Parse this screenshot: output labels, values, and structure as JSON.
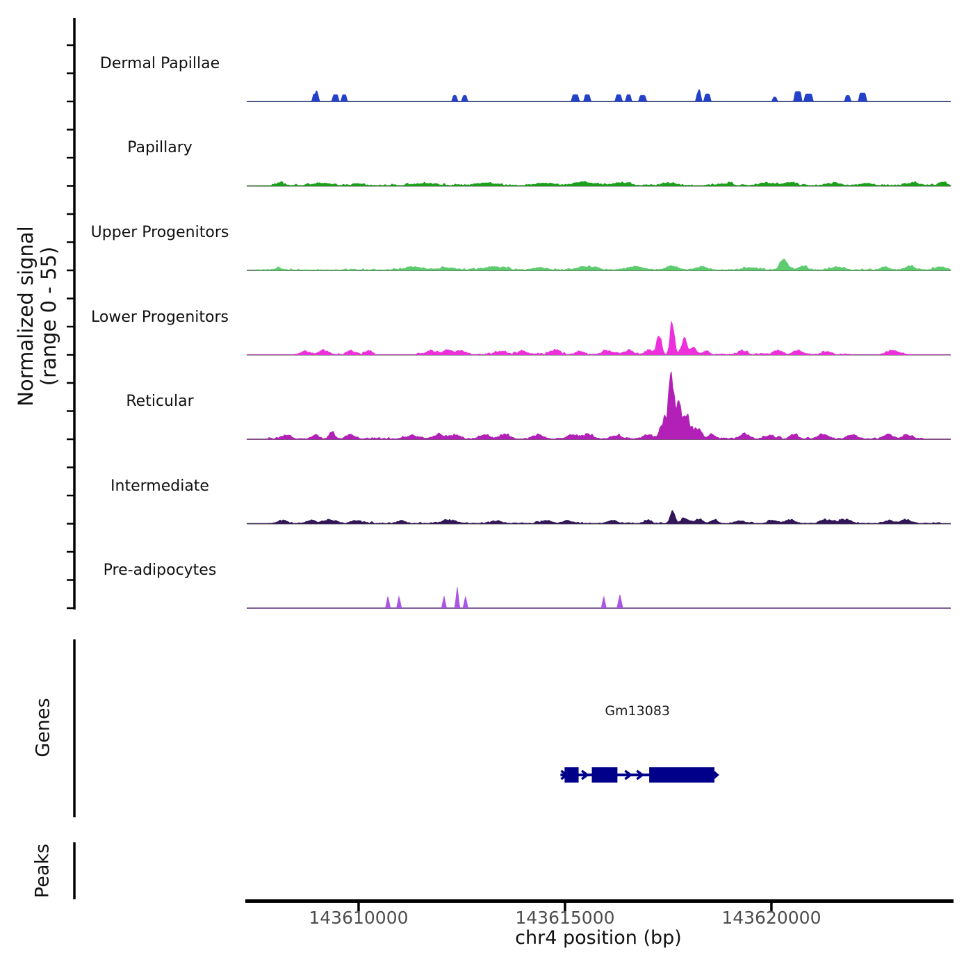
{
  "figure": {
    "ylabel_line1": "Normalized signal",
    "ylabel_line2": "(range 0 - 55)",
    "xlabel": "chr4 position (bp)",
    "genes_section_label": "Genes",
    "peaks_section_label": "Peaks",
    "gene_color": "#00008B",
    "baseline_color": "#666666",
    "axis_color": "#000000",
    "tick_label_color": "#4d4d4d"
  },
  "chart_data": {
    "type": "area",
    "title": "",
    "xlabel": "chr4 position (bp)",
    "ylabel": "Normalized signal (range 0 - 55)",
    "x_axis": {
      "chromosome": "chr4",
      "ticks": [
        143610000,
        143615000,
        143620000
      ],
      "range": [
        143607290,
        143624345
      ]
    },
    "y_axis": {
      "range": [
        0,
        55
      ]
    },
    "tracks": [
      {
        "label": "Dermal Papillae",
        "color": "#2442C8",
        "shape": "block",
        "seed": 1,
        "jitter": 0,
        "noise": [],
        "peaks": [
          [
            143608960,
            5,
            120
          ],
          [
            143608985,
            7.5,
            25
          ],
          [
            143609440,
            4.5,
            110
          ],
          [
            143609650,
            4.5,
            90
          ],
          [
            143612330,
            4,
            80
          ],
          [
            143612570,
            4,
            80
          ],
          [
            143615250,
            4.5,
            130
          ],
          [
            143615540,
            4.5,
            110
          ],
          [
            143616300,
            4.5,
            110
          ],
          [
            143616540,
            4.5,
            90
          ],
          [
            143616880,
            4,
            130
          ],
          [
            143618240,
            5.5,
            90
          ],
          [
            143618250,
            8.5,
            25
          ],
          [
            143618450,
            5,
            110
          ],
          [
            143620080,
            3,
            70
          ],
          [
            143620640,
            6.5,
            140
          ],
          [
            143620900,
            5,
            160
          ],
          [
            143621850,
            4,
            90
          ],
          [
            143622210,
            5.5,
            140
          ]
        ]
      },
      {
        "label": "Papillary",
        "color": "#1CA01C",
        "shape": "gauss",
        "seed": 2,
        "jitter": 0.25,
        "noise": [
          [
            143607900,
            143624340,
            1.6
          ]
        ],
        "peaks": [
          [
            143608100,
            1.5,
            250
          ],
          [
            143609100,
            1.5,
            500
          ],
          [
            143610000,
            1.3,
            300
          ],
          [
            143611600,
            1.3,
            700
          ],
          [
            143613100,
            1.5,
            600
          ],
          [
            143614500,
            1.6,
            500
          ],
          [
            143615450,
            2.2,
            600
          ],
          [
            143616350,
            1.8,
            500
          ],
          [
            143617550,
            1.7,
            400
          ],
          [
            143618900,
            1.2,
            400
          ],
          [
            143619900,
            1.5,
            500
          ],
          [
            143620450,
            1.6,
            350
          ],
          [
            143621500,
            1.3,
            400
          ],
          [
            143622300,
            1.4,
            350
          ],
          [
            143623400,
            1.5,
            400
          ],
          [
            143624150,
            1.8,
            250
          ]
        ]
      },
      {
        "label": "Upper Progenitors",
        "color": "#5ECC6E",
        "shape": "gauss",
        "seed": 3,
        "jitter": 0.25,
        "noise": [
          [
            143607500,
            143624340,
            1.4
          ]
        ],
        "peaks": [
          [
            143608050,
            1.2,
            250
          ],
          [
            143611350,
            2.2,
            450
          ],
          [
            143612200,
            1.5,
            400
          ],
          [
            143613300,
            2.0,
            600
          ],
          [
            143614400,
            1.5,
            400
          ],
          [
            143615550,
            2.2,
            500
          ],
          [
            143616700,
            2.4,
            400
          ],
          [
            143617600,
            2.6,
            350
          ],
          [
            143618300,
            2.0,
            350
          ],
          [
            143619500,
            1.5,
            400
          ],
          [
            143620300,
            6.5,
            220
          ],
          [
            143620750,
            2.2,
            300
          ],
          [
            143621600,
            2.0,
            400
          ],
          [
            143622750,
            2.0,
            250
          ],
          [
            143623350,
            2.4,
            300
          ],
          [
            143624100,
            2.2,
            300
          ]
        ]
      },
      {
        "label": "Lower Progenitors",
        "color": "#EE30DC",
        "shape": "gauss",
        "seed": 4,
        "jitter": 0.3,
        "noise": [
          [
            143608400,
            143610400,
            1.5
          ],
          [
            143611400,
            143617100,
            1.6
          ],
          [
            143618600,
            143622000,
            1.3
          ],
          [
            143622600,
            143623400,
            1.2
          ]
        ],
        "peaks": [
          [
            143608700,
            2.2,
            250
          ],
          [
            143609150,
            2.8,
            280
          ],
          [
            143609800,
            2.2,
            220
          ],
          [
            143610250,
            2.4,
            200
          ],
          [
            143611750,
            2.2,
            280
          ],
          [
            143612150,
            2.8,
            300
          ],
          [
            143612500,
            2.4,
            220
          ],
          [
            143613450,
            2.4,
            300
          ],
          [
            143614000,
            2.0,
            250
          ],
          [
            143614750,
            2.6,
            260
          ],
          [
            143615350,
            2.0,
            220
          ],
          [
            143616050,
            2.4,
            300
          ],
          [
            143616550,
            2.4,
            260
          ],
          [
            143617050,
            3.2,
            200
          ],
          [
            143617280,
            15,
            130
          ],
          [
            143617600,
            23,
            120
          ],
          [
            143617880,
            11,
            150
          ],
          [
            143618100,
            5,
            200
          ],
          [
            143618420,
            2.6,
            180
          ],
          [
            143619300,
            2.0,
            250
          ],
          [
            143620150,
            2.2,
            250
          ],
          [
            143620650,
            2.4,
            280
          ],
          [
            143621350,
            2.0,
            250
          ],
          [
            143622950,
            2.6,
            320
          ]
        ]
      },
      {
        "label": "Reticular",
        "color": "#B220B8",
        "shape": "gauss",
        "seed": 5,
        "jitter": 0.3,
        "noise": [
          [
            143607800,
            143623700,
            1.6
          ]
        ],
        "peaks": [
          [
            143608250,
            2.4,
            280
          ],
          [
            143608950,
            2.4,
            220
          ],
          [
            143609350,
            5.2,
            140
          ],
          [
            143609800,
            2.8,
            260
          ],
          [
            143611300,
            2.0,
            300
          ],
          [
            143611950,
            2.6,
            300
          ],
          [
            143612350,
            2.8,
            260
          ],
          [
            143613050,
            2.4,
            300
          ],
          [
            143613550,
            2.8,
            260
          ],
          [
            143614350,
            2.8,
            300
          ],
          [
            143615150,
            2.8,
            260
          ],
          [
            143615550,
            2.8,
            300
          ],
          [
            143616250,
            2.4,
            300
          ],
          [
            143617000,
            3.2,
            240
          ],
          [
            143617400,
            12,
            200
          ],
          [
            143617580,
            49,
            130
          ],
          [
            143617760,
            22,
            140
          ],
          [
            143617950,
            15,
            180
          ],
          [
            143618200,
            7,
            220
          ],
          [
            143618550,
            3,
            200
          ],
          [
            143619350,
            3.4,
            260
          ],
          [
            143619950,
            2.4,
            260
          ],
          [
            143620550,
            3.0,
            220
          ],
          [
            143621250,
            3.2,
            280
          ],
          [
            143621950,
            2.4,
            300
          ],
          [
            143622850,
            2.4,
            300
          ],
          [
            143623300,
            2.6,
            240
          ]
        ]
      },
      {
        "label": "Intermediate",
        "color": "#321758",
        "shape": "gauss",
        "seed": 6,
        "jitter": 0.25,
        "noise": [
          [
            143607800,
            143624100,
            1.3
          ]
        ],
        "peaks": [
          [
            143608150,
            1.8,
            250
          ],
          [
            143608850,
            2.0,
            250
          ],
          [
            143609300,
            2.2,
            350
          ],
          [
            143609950,
            2.0,
            280
          ],
          [
            143611050,
            1.6,
            250
          ],
          [
            143612200,
            2.2,
            400
          ],
          [
            143613350,
            1.6,
            300
          ],
          [
            143614550,
            1.8,
            300
          ],
          [
            143615050,
            1.8,
            250
          ],
          [
            143616150,
            1.8,
            300
          ],
          [
            143617000,
            2.2,
            200
          ],
          [
            143617600,
            7.5,
            130
          ],
          [
            143617900,
            3.6,
            200
          ],
          [
            143618250,
            2.8,
            220
          ],
          [
            143618600,
            2.2,
            180
          ],
          [
            143619250,
            1.8,
            250
          ],
          [
            143620050,
            2.2,
            250
          ],
          [
            143620450,
            2.8,
            240
          ],
          [
            143621350,
            2.4,
            350
          ],
          [
            143621800,
            2.6,
            300
          ],
          [
            143622850,
            1.8,
            250
          ],
          [
            143623250,
            2.4,
            280
          ]
        ]
      },
      {
        "label": "Pre-adipocytes",
        "color": "#AA55E6",
        "shape": "tri",
        "seed": 7,
        "jitter": 0,
        "noise": [],
        "peaks": [
          [
            143610710,
            8,
            110
          ],
          [
            143610980,
            8,
            110
          ],
          [
            143612070,
            8,
            110
          ],
          [
            143612390,
            14,
            110
          ],
          [
            143612590,
            8,
            110
          ],
          [
            143615940,
            8,
            110
          ],
          [
            143616330,
            9,
            130
          ]
        ]
      }
    ],
    "genes": [
      {
        "name": "Gm13083",
        "start": 143614890,
        "end": 143618620,
        "strand": "+",
        "exons": [
          [
            143614990,
            143615330
          ],
          [
            143615650,
            143616270
          ],
          [
            143617040,
            143618620
          ]
        ]
      }
    ],
    "peaks_features": []
  }
}
